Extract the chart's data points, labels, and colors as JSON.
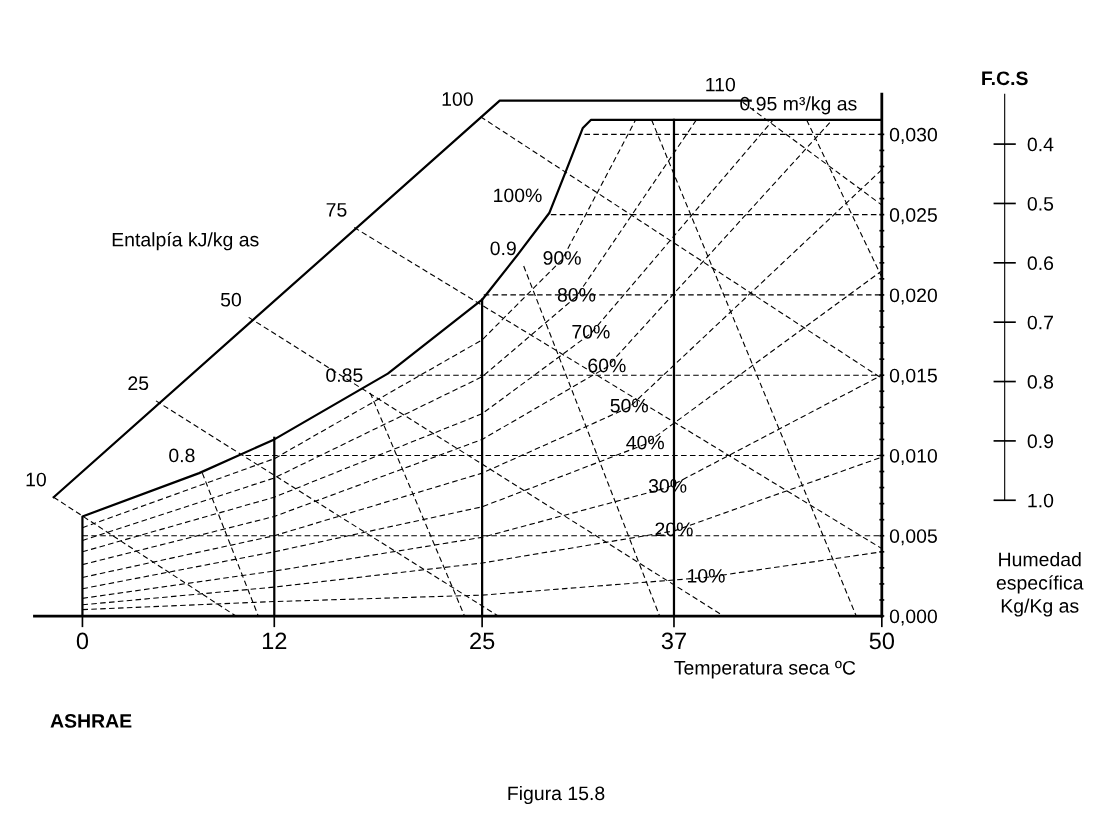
{
  "chart_data": {
    "type": "line",
    "xlabel": "Temperatura seca ºC",
    "y2label": "F.C.S",
    "xlim": [
      -3,
      50
    ],
    "xticks": [
      0,
      12,
      25,
      37,
      50
    ],
    "ylim": [
      0,
      0.0325
    ],
    "yticks": [
      {
        "value": 0,
        "label": "0,000"
      },
      {
        "value": 0.001,
        "label": null
      },
      {
        "value": 0.002,
        "label": null
      },
      {
        "value": 0.003,
        "label": null
      },
      {
        "value": 0.004,
        "label": null
      },
      {
        "value": 0.005,
        "label": "0,005"
      },
      {
        "value": 0.006,
        "label": null
      },
      {
        "value": 0.007,
        "label": null
      },
      {
        "value": 0.008,
        "label": null
      },
      {
        "value": 0.009,
        "label": null
      },
      {
        "value": 0.01,
        "label": "0,010"
      },
      {
        "value": 0.011,
        "label": null
      },
      {
        "value": 0.012,
        "label": null
      },
      {
        "value": 0.013,
        "label": null
      },
      {
        "value": 0.014,
        "label": null
      },
      {
        "value": 0.015,
        "label": "0,015"
      },
      {
        "value": 0.016,
        "label": null
      },
      {
        "value": 0.017,
        "label": null
      },
      {
        "value": 0.018,
        "label": null
      },
      {
        "value": 0.019,
        "label": null
      },
      {
        "value": 0.02,
        "label": "0,020"
      },
      {
        "value": 0.021,
        "label": null
      },
      {
        "value": 0.022,
        "label": null
      },
      {
        "value": 0.023,
        "label": null
      },
      {
        "value": 0.024,
        "label": null
      },
      {
        "value": 0.025,
        "label": "0,025"
      },
      {
        "value": 0.026,
        "label": null
      },
      {
        "value": 0.027,
        "label": null
      },
      {
        "value": 0.028,
        "label": null
      },
      {
        "value": 0.029,
        "label": null
      },
      {
        "value": 0.03,
        "label": "0,030"
      }
    ],
    "y2lim": [
      1.195,
      0.316
    ],
    "y2ticks": [
      0.4,
      0.5,
      0.6,
      0.7,
      0.8,
      0.9,
      {
        "value": 1,
        "label": "1.0"
      }
    ],
    "grid": false,
    "legend": false,
    "marker": "none",
    "series": [
      {
        "name": "100%",
        "color": "#000000",
        "line_style": "solid",
        "x": [
          0,
          0,
          7.3,
          12,
          19.1,
          25,
          27.3,
          29.2,
          30.2,
          31.3,
          31.8,
          50
        ],
        "values": [
          0,
          0.0062,
          0.0089,
          0.011,
          0.0151,
          0.0197,
          0.0226,
          0.0251,
          0.0276,
          0.0304,
          0.0309,
          0.0309
        ]
      },
      {
        "color": "#000000",
        "line_style": "solid",
        "x": [
          -1.8,
          26.1,
          41.8
        ],
        "values": [
          0.0074,
          0.0321,
          0.0321
        ]
      },
      {
        "name": "10",
        "color": "#000000",
        "line_style": "dashed",
        "x": [
          -1.8,
          9.6
        ],
        "values": [
          0.0074,
          0
        ]
      },
      {
        "name": "25",
        "color": "#000000",
        "line_style": "dashed",
        "x": [
          4.6,
          26.0
        ],
        "values": [
          0.0134,
          0
        ]
      },
      {
        "name": "50",
        "color": "#000000",
        "line_style": "dashed",
        "x": [
          10.4,
          40.1
        ],
        "values": [
          0.0186,
          0
        ]
      },
      {
        "name": "75",
        "color": "#000000",
        "line_style": "dashed",
        "x": [
          17.0,
          50
        ],
        "values": [
          0.0242,
          0.0042
        ]
      },
      {
        "name": "100",
        "color": "#000000",
        "line_style": "dashed",
        "x": [
          24.9,
          50
        ],
        "values": [
          0.0311,
          0.0148
        ]
      },
      {
        "name": "110",
        "color": "#000000",
        "line_style": "dashed",
        "x": [
          41.3,
          50
        ],
        "values": [
          0.032,
          0.0256
        ]
      },
      {
        "name": "0.8",
        "color": "#000000",
        "line_style": "dashed",
        "x": [
          7.5,
          11.0
        ],
        "values": [
          0.0089,
          0
        ]
      },
      {
        "name": "0.85",
        "color": "#000000",
        "line_style": "dashed",
        "x": [
          18.0,
          23.9
        ],
        "values": [
          0.0139,
          0
        ]
      },
      {
        "name": "0.9",
        "color": "#000000",
        "line_style": "dashed",
        "x": [
          27.6,
          36.1
        ],
        "values": [
          0.0218,
          0
        ]
      },
      {
        "color": "#000000",
        "line_style": "dashed",
        "x": [
          35.6,
          48.4
        ],
        "values": [
          0.0309,
          0
        ]
      },
      {
        "color": "#000000",
        "line_style": "dashed",
        "x": [
          45.3,
          50
        ],
        "values": [
          0.0309,
          0.0211
        ]
      },
      {
        "color": "#000000",
        "line_style": "dashed",
        "x": [
          0,
          50
        ],
        "values": [
          0.005,
          0.005
        ]
      },
      {
        "color": "#000000",
        "line_style": "dashed",
        "x": [
          10.2,
          50
        ],
        "values": [
          0.01,
          0.01
        ]
      },
      {
        "color": "#000000",
        "line_style": "dashed",
        "x": [
          19.3,
          50
        ],
        "values": [
          0.015,
          0.015
        ]
      },
      {
        "color": "#000000",
        "line_style": "dashed",
        "x": [
          25.1,
          50
        ],
        "values": [
          0.02,
          0.02
        ]
      },
      {
        "color": "#000000",
        "line_style": "dashed",
        "x": [
          29.3,
          50
        ],
        "values": [
          0.025,
          0.025
        ]
      },
      {
        "color": "#000000",
        "line_style": "dashed",
        "x": [
          31.4,
          50
        ],
        "values": [
          0.03,
          0.03
        ]
      },
      {
        "color": "#000000",
        "line_style": "solid",
        "x": [
          12,
          12
        ],
        "values": [
          0,
          0.0111
        ]
      },
      {
        "color": "#000000",
        "line_style": "solid",
        "x": [
          25,
          25
        ],
        "values": [
          0,
          0.0197
        ]
      },
      {
        "color": "#000000",
        "line_style": "solid",
        "x": [
          37,
          37
        ],
        "values": [
          0,
          0.0309
        ]
      },
      {
        "color": "#000000",
        "line_style": "dashed",
        "x": [
          0,
          12,
          25,
          39,
          50
        ],
        "values": [
          0.0004,
          0.0009,
          0.0013,
          0.0024,
          0.004
        ]
      },
      {
        "color": "#000000",
        "line_style": "dashed",
        "x": [
          0,
          12,
          25,
          37,
          50
        ],
        "values": [
          0.0007,
          0.0018,
          0.0033,
          0.0053,
          0.0099
        ]
      },
      {
        "color": "#000000",
        "line_style": "dashed",
        "x": [
          0,
          12,
          25,
          36.6,
          50
        ],
        "values": [
          0.0011,
          0.0028,
          0.0049,
          0.008,
          0.015
        ]
      },
      {
        "color": "#000000",
        "line_style": "dashed",
        "x": [
          0,
          12,
          25,
          35.2,
          50
        ],
        "values": [
          0.0017,
          0.004,
          0.0068,
          0.0107,
          0.0215
        ]
      },
      {
        "color": "#000000",
        "line_style": "dashed",
        "x": [
          0,
          12,
          25,
          34.2,
          50
        ],
        "values": [
          0.0024,
          0.005,
          0.0089,
          0.013,
          0.0278
        ]
      },
      {
        "color": "#000000",
        "line_style": "dashed",
        "x": [
          0,
          12,
          25,
          32.8,
          46.9
        ],
        "values": [
          0.0032,
          0.0062,
          0.011,
          0.0155,
          0.0309
        ]
      },
      {
        "color": "#000000",
        "line_style": "dashed",
        "x": [
          0,
          12,
          25,
          31.8,
          43.2
        ],
        "values": [
          0.004,
          0.0074,
          0.0126,
          0.0176,
          0.0309
        ]
      },
      {
        "color": "#000000",
        "line_style": "dashed",
        "x": [
          0,
          12,
          25,
          30.9,
          38.4
        ],
        "values": [
          0.0047,
          0.0086,
          0.0149,
          0.0199,
          0.0309
        ]
      },
      {
        "color": "#000000",
        "line_style": "dashed",
        "x": [
          0,
          12,
          25,
          30.0,
          34.6
        ],
        "values": [
          0.0055,
          0.0098,
          0.0172,
          0.0222,
          0.0309
        ]
      }
    ],
    "annotations": [
      {
        "text": "10%",
        "x": 39,
        "y": 0.0024
      },
      {
        "text": "20%",
        "x": 37,
        "y": 0.0053
      },
      {
        "text": "30%",
        "x": 36.6,
        "y": 0.008
      },
      {
        "text": "40%",
        "x": 35.2,
        "y": 0.0107
      },
      {
        "text": "50%",
        "x": 34.2,
        "y": 0.013
      },
      {
        "text": "60%",
        "x": 32.8,
        "y": 0.0155
      },
      {
        "text": "70%",
        "x": 31.8,
        "y": 0.0176
      },
      {
        "text": "80%",
        "x": 30.9,
        "y": 0.0199
      },
      {
        "text": "90%",
        "x": 30.0,
        "y": 0.0222
      },
      "0.95 m³/kg as",
      "Entalpía kJ/kg as",
      "Humedad\nespecífica\nKg/Kg as",
      "ASHRAE",
      "Figura 15.8"
    ]
  }
}
